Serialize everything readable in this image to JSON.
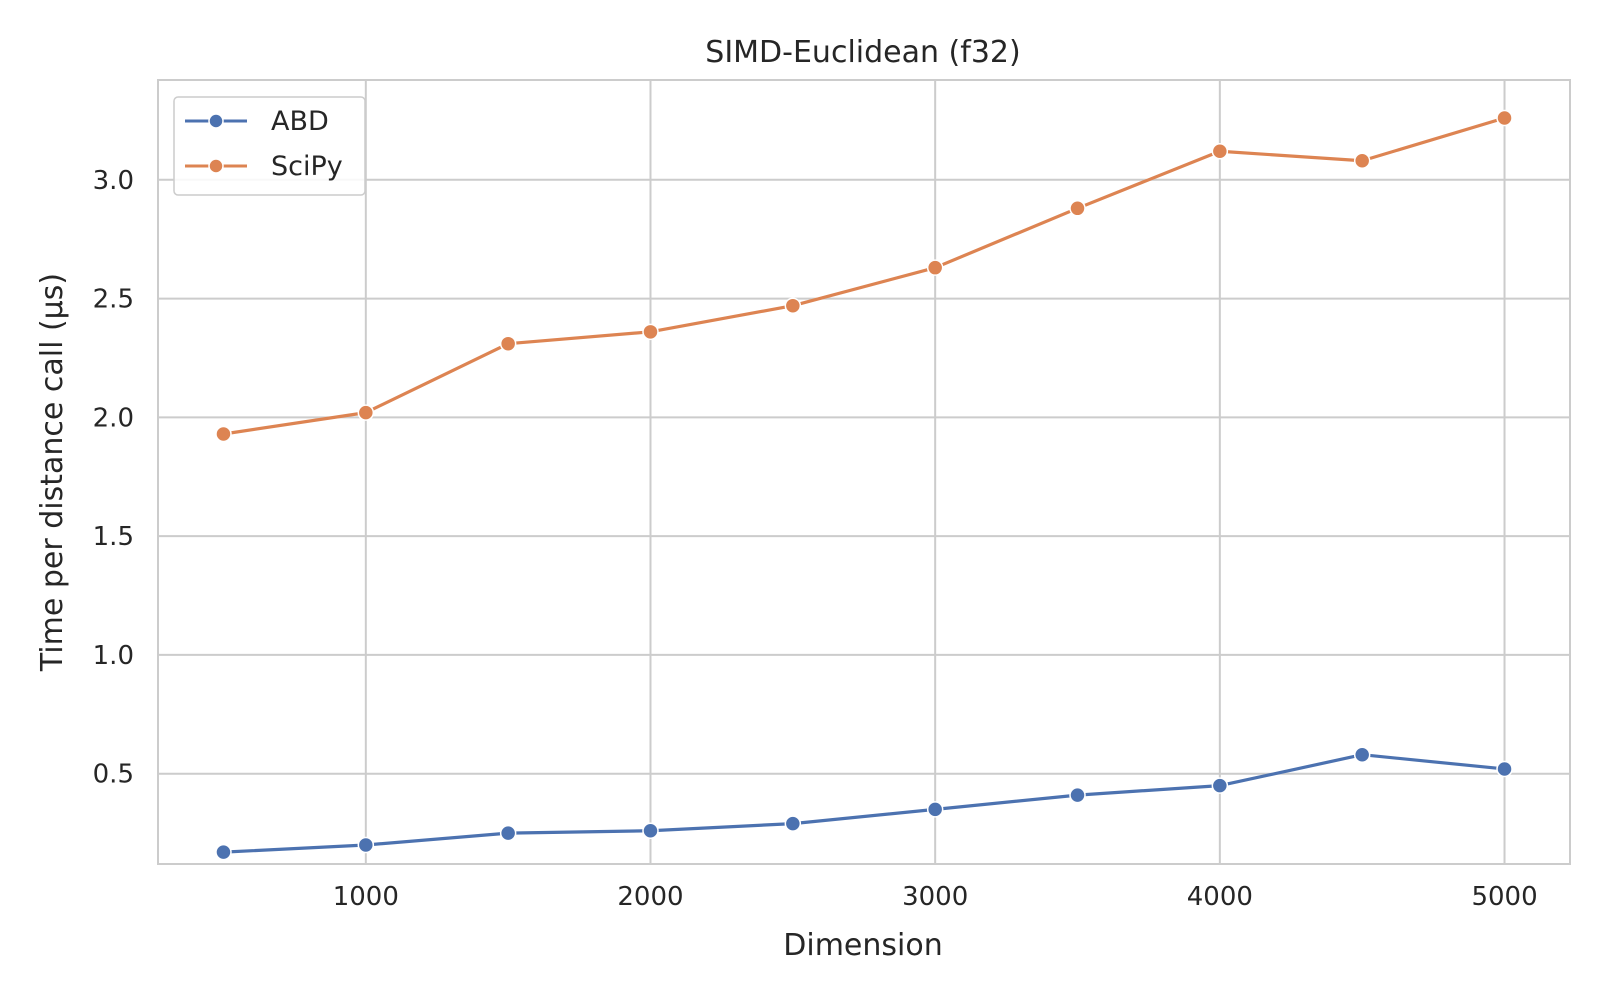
{
  "chart_data": {
    "type": "line",
    "title": "SIMD-Euclidean (f32)",
    "xlabel": "Dimension",
    "ylabel": "Time per distance call (µs)",
    "x": [
      500,
      1000,
      1500,
      2000,
      2500,
      3000,
      3500,
      4000,
      4500,
      5000
    ],
    "xlim": [
      270,
      5230
    ],
    "ylim": [
      0.12,
      3.42
    ],
    "xticks": [
      1000,
      2000,
      3000,
      4000,
      5000
    ],
    "xtick_labels": [
      "1000",
      "2000",
      "3000",
      "4000",
      "5000"
    ],
    "yticks": [
      0.5,
      1.0,
      1.5,
      2.0,
      2.5,
      3.0
    ],
    "ytick_labels": [
      "0.5",
      "1.0",
      "1.5",
      "2.0",
      "2.5",
      "3.0"
    ],
    "grid": true,
    "legend_position": "top-left",
    "series": [
      {
        "name": "ABD",
        "color": "#4c72b0",
        "values": [
          0.17,
          0.2,
          0.25,
          0.26,
          0.29,
          0.35,
          0.41,
          0.45,
          0.58,
          0.52
        ]
      },
      {
        "name": "SciPy",
        "color": "#dd8452",
        "values": [
          1.93,
          2.02,
          2.31,
          2.36,
          2.47,
          2.63,
          2.88,
          3.12,
          3.08,
          3.26
        ]
      }
    ]
  }
}
